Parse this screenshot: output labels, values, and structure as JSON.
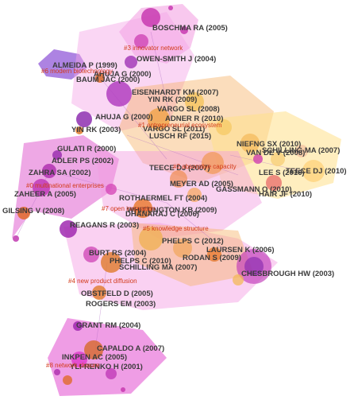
{
  "references": [
    "BOSCHMA RA (2005)",
    "OWEN-SMITH J (2004)",
    "BAUM JAC (2000)",
    "ALMEIDA P (1999)",
    "AHUJA G (2000)",
    "EISENHARDT KM (2007)",
    "YIN RK (2009)",
    "VARGO SL (2008)",
    "ADNER R (2010)",
    "AHUJA G (2000)",
    "VARGO SL (2011)",
    "LUSCH RF (2015)",
    "YIN RK (2003)",
    "NIEFNG SX (2010)",
    "SCHILLING MA (2007)",
    "VAN DE V (2008)",
    "TEECE DJ (2010)",
    "GULATI R (2000)",
    "ADLER PS (2002)",
    "ZAHRA SA (2002)",
    "LEE S (2016)",
    "TEECE DJ (2007)",
    "MEYER AD (2005)",
    "GASSMANN O (2010)",
    "HAIR JF (2010)",
    "ZAHEER A (2005)",
    "ROTHAERMEL FT (2004)",
    "GILSING V (2008)",
    "WHITTINGTON KB (2009)",
    "DHANARAJ C (2006)",
    "REAGANS R (2003)",
    "PHELPS C (2012)",
    "LAURSEN K (2006)",
    "BURT RS (2004)",
    "CHESBROUGH HW (2003)",
    "PHELPS C (2010)",
    "RODAN S (2009)",
    "SCHILLING MA (2007)",
    "OBSTFELD D (2005)",
    "ROGERS EM (2003)",
    "GRANT RM (2004)",
    "CAPALDO A (2007)",
    "INKPEN AC (2005)",
    "YLI-RENKO H (2001)"
  ],
  "clusters": [
    "#3 innovator network",
    "#6 modern biotechnology",
    "#1 entrepreneurial ecosystem",
    "#2 absorptive capacity",
    "#0 multinational enterprises",
    "#7 open innovation",
    "#5 knowledge structure",
    "#4 new product diffusion",
    "#8 network closure"
  ],
  "colors": {
    "background": "#ffffff",
    "label_text": "#3b3b3b",
    "cluster_label": "#d23a1a",
    "hull_pink": "#f5a3e6",
    "hull_magenta": "#e03bcb",
    "hull_purple": "#8a4fd6",
    "hull_yellow": "#ffe08a",
    "hull_orange": "#f7b46b"
  }
}
